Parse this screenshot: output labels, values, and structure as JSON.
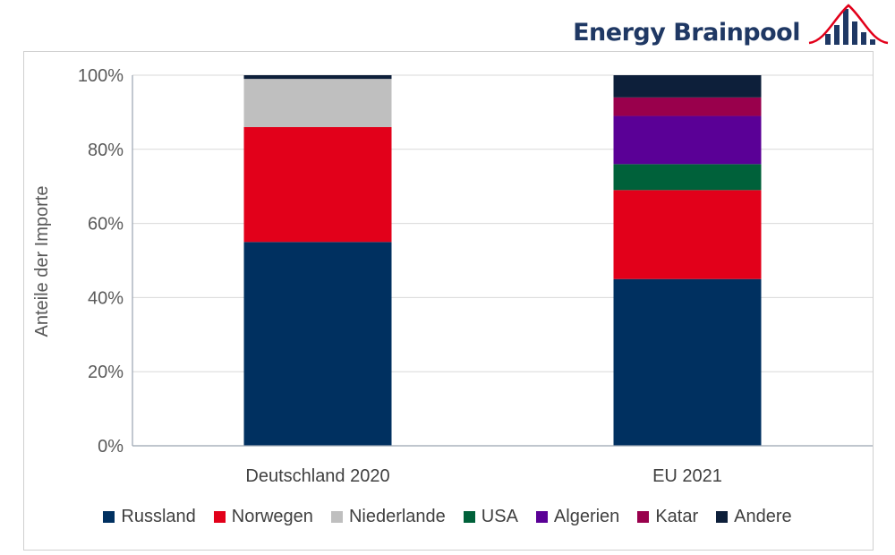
{
  "logo": {
    "text": "Energy Brainpool",
    "colors": {
      "text": "#1f3864",
      "bars": "#1f3864",
      "curve": "#e2001a"
    }
  },
  "chart_data": {
    "type": "bar",
    "stacked": true,
    "title": "",
    "xlabel": "",
    "ylabel": "Anteile der Importe",
    "ylim": [
      0,
      100
    ],
    "yticks": [
      "0%",
      "20%",
      "40%",
      "60%",
      "80%",
      "100%"
    ],
    "grid": true,
    "legend_position": "bottom",
    "categories": [
      "Deutschland 2020",
      "EU 2021"
    ],
    "series": [
      {
        "name": "Russland",
        "color": "#003060",
        "values": [
          55,
          45
        ]
      },
      {
        "name": "Norwegen",
        "color": "#e2001a",
        "values": [
          31,
          24
        ]
      },
      {
        "name": "Niederlande",
        "color": "#bfbfbf",
        "values": [
          13,
          0
        ]
      },
      {
        "name": "USA",
        "color": "#00613a",
        "values": [
          0,
          7
        ]
      },
      {
        "name": "Algerien",
        "color": "#5a0096",
        "values": [
          0,
          13
        ]
      },
      {
        "name": "Katar",
        "color": "#99004c",
        "values": [
          0,
          5
        ]
      },
      {
        "name": "Andere",
        "color": "#0d1f3a",
        "values": [
          1,
          6
        ]
      }
    ]
  }
}
